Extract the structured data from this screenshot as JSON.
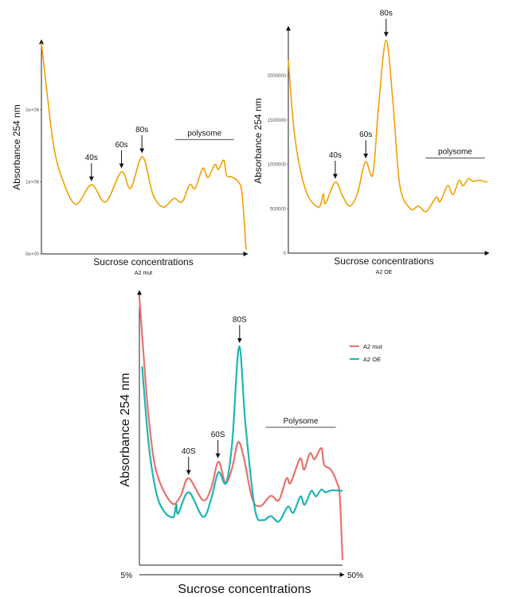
{
  "colors": {
    "profile": "#F2A000",
    "a2_mut": "#E8736C",
    "a2_oe": "#1FB5B5",
    "axis": "#222222"
  },
  "chart_data": [
    {
      "type": "line",
      "title": "",
      "subtitle": "A2 mut",
      "xlabel": "Sucrose concentrations",
      "ylabel": "Absorbance 254 nm",
      "xlim": [
        5,
        50
      ],
      "ylim": [
        0,
        2950000
      ],
      "yticks": [
        0,
        1000000,
        2000000
      ],
      "ytick_labels": [
        "0e+00",
        "1e+06",
        "2e+06"
      ],
      "grid": false,
      "series": [
        {
          "color": "#F2A000",
          "x": [
            5,
            6.15,
            7.6,
            9.3,
            12.5,
            16.0,
            19.1,
            22.6,
            24.6,
            27.2,
            29.5,
            31.8,
            34.1,
            35.9,
            37.6,
            38.8,
            40.5,
            41.6,
            43.1,
            43.9,
            45.1,
            45.7,
            46.8,
            48.3,
            49.1,
            50
          ],
          "y": [
            2930000,
            2280000,
            1540000,
            1090000,
            690000,
            960000,
            720000,
            1140000,
            910000,
            1350000,
            830000,
            650000,
            770000,
            720000,
            960000,
            910000,
            1190000,
            1060000,
            1240000,
            1170000,
            1300000,
            1090000,
            1070000,
            1000000,
            830000,
            60000
          ]
        }
      ],
      "annotations": [
        {
          "label": "40s",
          "x": 16.0
        },
        {
          "label": "60s",
          "x": 22.6
        },
        {
          "label": "80s",
          "x": 27.1
        }
      ],
      "range_annotation": {
        "label": "polysome",
        "x_start": 34.4,
        "x_end": 47.3
      }
    },
    {
      "type": "line",
      "title": "",
      "subtitle": "A2 OE",
      "xlabel": "Sucrose concentrations",
      "ylabel": "Absorbance 254 nm",
      "xlim": [
        5,
        50
      ],
      "ylim": [
        0,
        2540000
      ],
      "yticks": [
        0,
        500000,
        1000000,
        1500000,
        2000000
      ],
      "ytick_labels": [
        "0",
        "500000",
        "1000000",
        "1500000",
        "2000000"
      ],
      "grid": false,
      "series": [
        {
          "color": "#F2A000",
          "x": [
            5,
            6.2,
            7.7,
            9.5,
            11.6,
            12.3,
            12.9,
            13.4,
            15.6,
            17.3,
            18.9,
            20.6,
            22.4,
            24.1,
            25.4,
            27.1,
            28.7,
            30.2,
            32.6,
            34.4,
            36.2,
            38.4,
            39.3,
            41,
            42.2,
            43.6,
            44.5,
            45.7,
            46.7,
            48.2,
            50
          ],
          "y": [
            2180000,
            1420000,
            940000,
            640000,
            520000,
            550000,
            670000,
            560000,
            800000,
            640000,
            530000,
            670000,
            1030000,
            890000,
            1660000,
            2400000,
            1660000,
            760000,
            500000,
            530000,
            470000,
            630000,
            580000,
            760000,
            660000,
            820000,
            760000,
            840000,
            810000,
            820000,
            800000
          ]
        }
      ],
      "annotations": [
        {
          "label": "40s",
          "x": 15.6
        },
        {
          "label": "60s",
          "x": 22.5
        },
        {
          "label": "80s",
          "x": 27.1
        }
      ],
      "range_annotation": {
        "label": "polysome",
        "x_start": 36.0,
        "x_end": 49.4
      }
    },
    {
      "type": "line",
      "title": "",
      "xlabel": "Sucrose concentrations",
      "ylabel": "Absorbance 254 nm",
      "xlim": [
        5,
        50
      ],
      "xtick_labels": [
        "5%",
        "50%"
      ],
      "ylim": [
        0,
        100
      ],
      "grid": false,
      "legend_placement": "top-right",
      "series": [
        {
          "name": "A2 mut",
          "color": "#E8736C",
          "x": [
            5,
            5.9,
            7.1,
            8.8,
            12.1,
            14.1,
            15.9,
            19.1,
            20.9,
            22.5,
            24.1,
            25.6,
            26.9,
            28.2,
            30,
            31.8,
            34.1,
            35.9,
            37.6,
            38.5,
            40.6,
            41.5,
            42.8,
            43.8,
            45.3,
            45.9,
            47.4,
            48.8,
            49.4,
            50
          ],
          "y": [
            98,
            77.7,
            53.4,
            34,
            22.8,
            25.2,
            31.8,
            23.8,
            28.2,
            37.9,
            30.1,
            35.9,
            45.1,
            38.8,
            24.3,
            21.6,
            25.4,
            23.8,
            31.8,
            30.1,
            39,
            35,
            41,
            38.8,
            42.9,
            36.9,
            35,
            30.1,
            25.2,
            1.9
          ]
        },
        {
          "name": "A2 OE",
          "color": "#1FB5B5",
          "x": [
            5.6,
            7.1,
            8.8,
            10.6,
            12.4,
            12.8,
            13.2,
            13.6,
            15.9,
            19.1,
            20.9,
            22.5,
            24.2,
            25.6,
            27.1,
            28.5,
            30.6,
            32.4,
            34.1,
            35.9,
            37.9,
            39.1,
            40.7,
            41.6,
            43.1,
            44.1,
            45.3,
            46.2,
            47.6,
            50
          ],
          "y": [
            72.8,
            43.7,
            26.2,
            19.4,
            17.5,
            18.9,
            22.3,
            18.9,
            26.7,
            17.7,
            24.3,
            34,
            30.1,
            45.6,
            80.1,
            51.5,
            20.4,
            16.5,
            18,
            16,
            21.4,
            19.2,
            25.2,
            22.1,
            27.2,
            25.2,
            27.7,
            26.7,
            27.4,
            27.2
          ]
        }
      ],
      "annotations": [
        {
          "label": "40S",
          "x": 15.9
        },
        {
          "label": "60S",
          "x": 22.4
        },
        {
          "label": "80S",
          "x": 27.2
        }
      ],
      "range_annotation": {
        "label": "Polysome",
        "x_start": 33.0,
        "x_end": 48.5
      }
    }
  ]
}
